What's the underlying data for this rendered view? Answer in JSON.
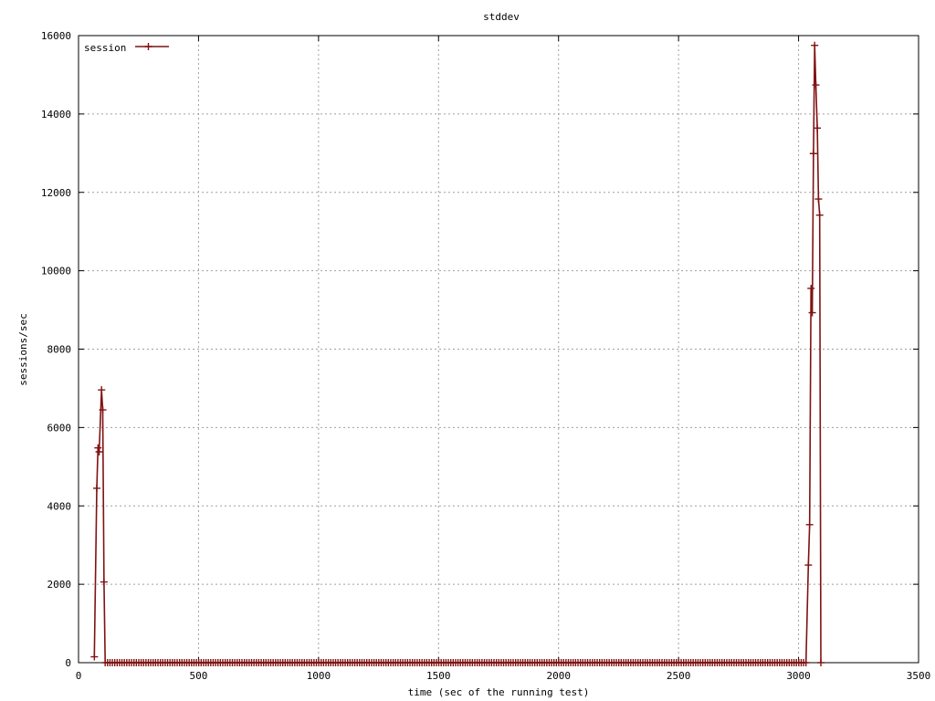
{
  "chart_data": {
    "type": "line",
    "title": "stddev",
    "xlabel": "time (sec of the running test)",
    "ylabel": "sessions/sec",
    "xlim": [
      0,
      3500
    ],
    "ylim": [
      0,
      16000
    ],
    "xticks": [
      0,
      500,
      1000,
      1500,
      2000,
      2500,
      3000,
      3500
    ],
    "yticks": [
      0,
      2000,
      4000,
      6000,
      8000,
      10000,
      12000,
      14000,
      16000
    ],
    "grid": true,
    "legend_position": "top-left",
    "series": [
      {
        "name": "session",
        "color": "#7f1212",
        "marker": "plus",
        "peak1": [
          [
            66,
            150
          ],
          [
            76,
            4450
          ],
          [
            81,
            5480
          ],
          [
            86,
            5380
          ],
          [
            96,
            6960
          ],
          [
            101,
            6450
          ],
          [
            106,
            2060
          ]
        ],
        "peak2": [
          [
            3041,
            2490
          ],
          [
            3046,
            3520
          ],
          [
            3052,
            9550
          ],
          [
            3057,
            8930
          ],
          [
            3062,
            12990
          ],
          [
            3067,
            15750
          ],
          [
            3072,
            14740
          ],
          [
            3078,
            13640
          ],
          [
            3083,
            11830
          ],
          [
            3088,
            11420
          ]
        ],
        "zero_range_1": [
          111,
          3036
        ],
        "zero_point_end": 3093,
        "zero_step": 10
      }
    ]
  }
}
